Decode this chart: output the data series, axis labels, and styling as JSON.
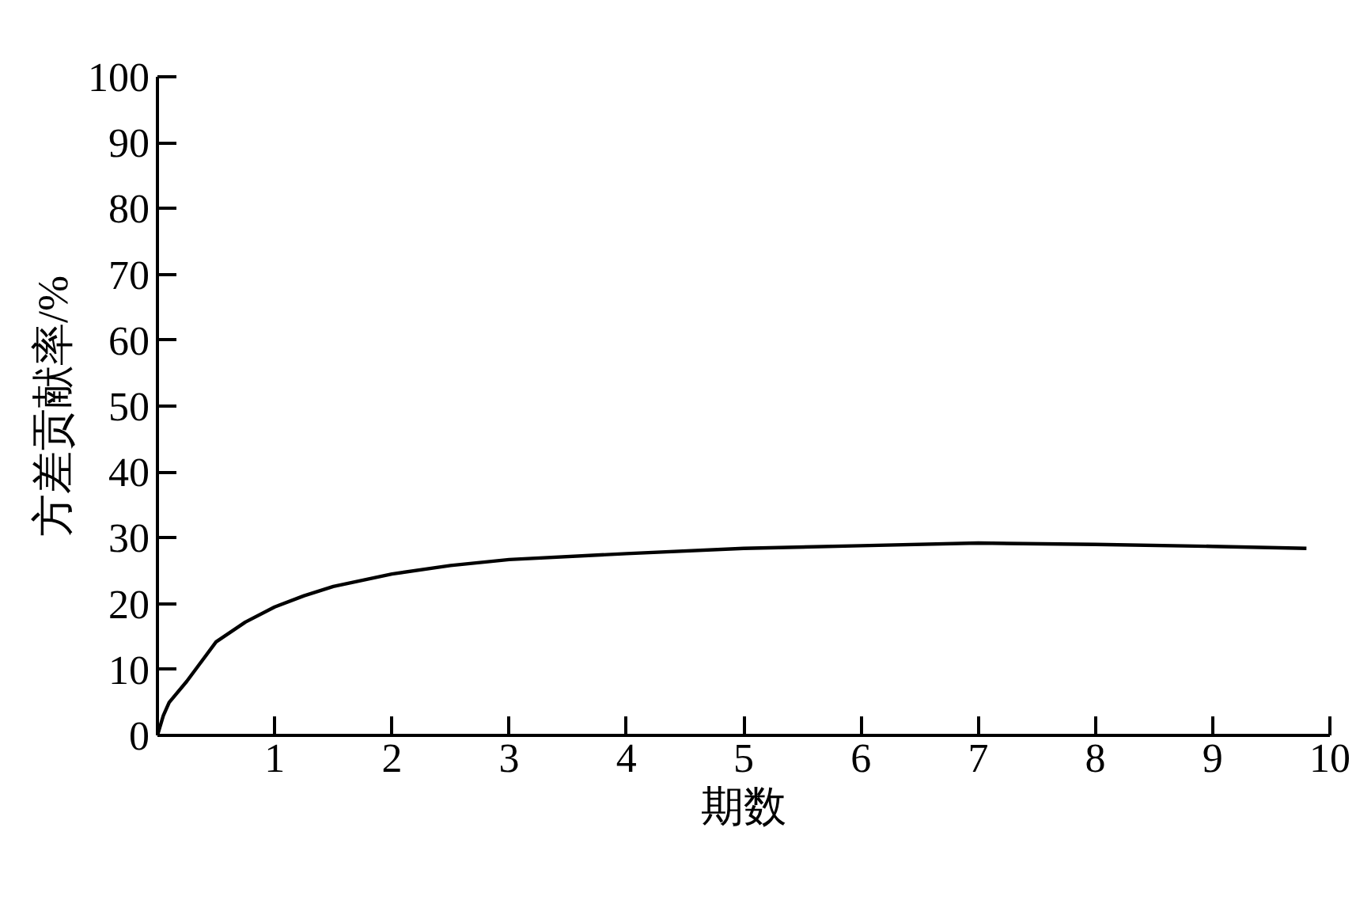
{
  "chart_data": {
    "type": "line",
    "xlabel": "期数",
    "ylabel": "方差贡献率/%",
    "x": [
      0,
      0.05,
      0.1,
      0.25,
      0.5,
      0.75,
      1,
      1.25,
      1.5,
      2,
      2.5,
      3,
      4,
      5,
      6,
      7,
      8,
      9,
      9.8
    ],
    "series": [
      {
        "color": "#000000",
        "values": [
          0,
          3,
          5,
          8.2,
          14.2,
          17.2,
          19.5,
          21.2,
          22.6,
          24.5,
          25.8,
          26.7,
          27.6,
          28.4,
          28.8,
          29.2,
          29.0,
          28.7,
          28.4
        ]
      }
    ],
    "xlim": [
      0,
      10
    ],
    "xticks": [
      1,
      2,
      3,
      4,
      5,
      6,
      7,
      8,
      9,
      10
    ],
    "ylim": [
      0,
      100
    ],
    "yticks": [
      0,
      10,
      20,
      30,
      40,
      50,
      60,
      70,
      80,
      90,
      100
    ],
    "grid": false,
    "marker": "none",
    "line_style": "solid"
  }
}
